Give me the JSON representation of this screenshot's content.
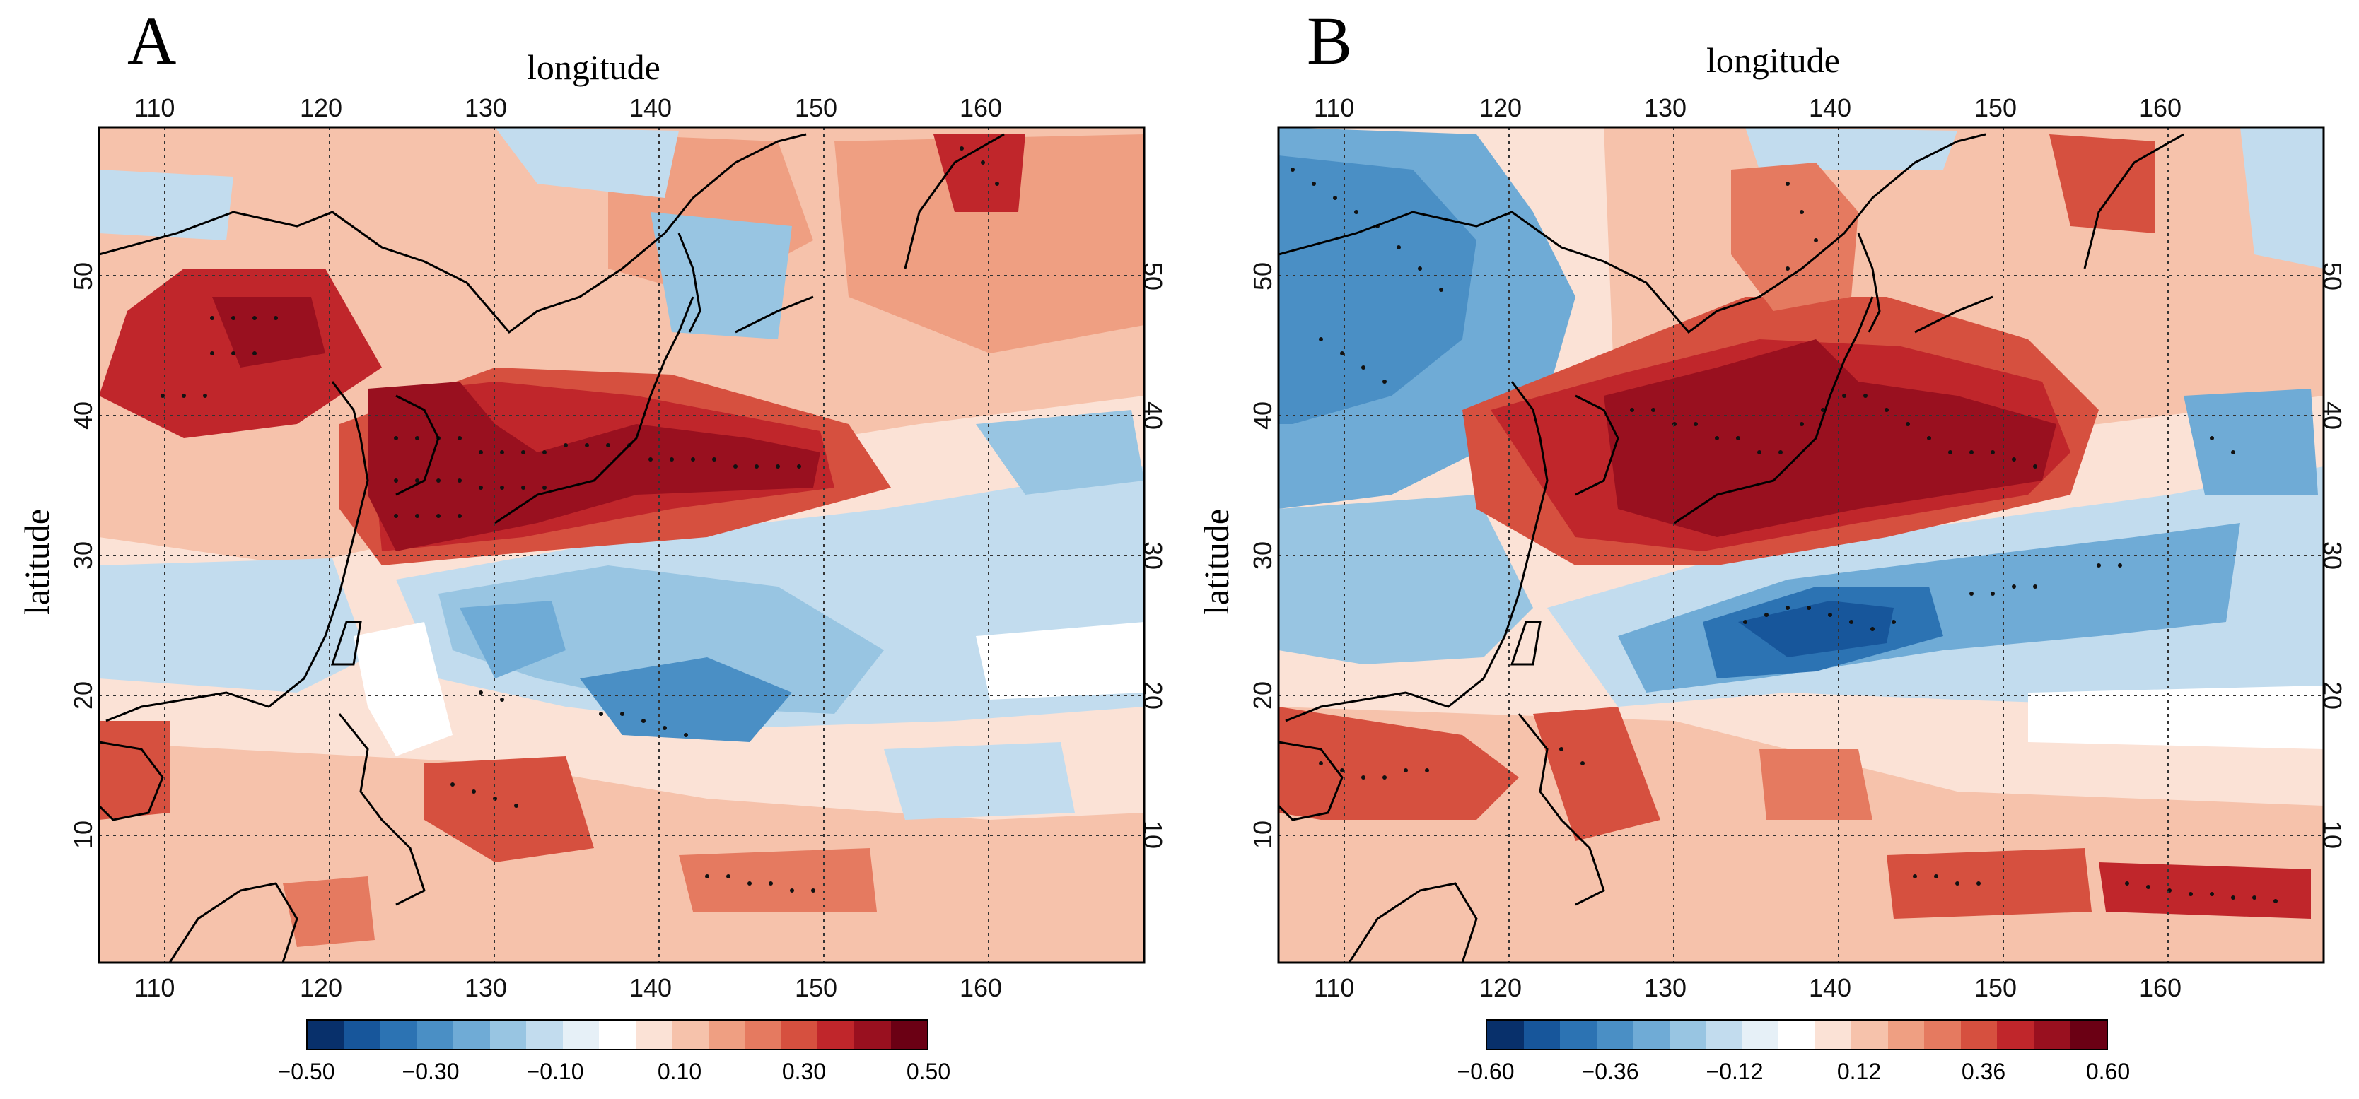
{
  "panels": [
    {
      "id": "A",
      "letter": "A",
      "xlabel": "longitude",
      "ylabel": "latitude",
      "lon_ticks": [
        "110",
        "120",
        "130",
        "140",
        "150",
        "160"
      ],
      "lat_ticks": [
        "10",
        "20",
        "30",
        "40",
        "50"
      ],
      "colorbar": {
        "labels": [
          "−0.50",
          "−0.30",
          "−0.10",
          "0.10",
          "0.30",
          "0.50"
        ],
        "range": [
          -0.5,
          0.5
        ]
      }
    },
    {
      "id": "B",
      "letter": "B",
      "xlabel": "longitude",
      "ylabel": "latitude",
      "lon_ticks": [
        "110",
        "120",
        "130",
        "140",
        "150",
        "160"
      ],
      "lat_ticks": [
        "10",
        "20",
        "30",
        "40",
        "50"
      ],
      "colorbar": {
        "labels": [
          "−0.60",
          "−0.36",
          "−0.12",
          "0.12",
          "0.36",
          "0.60"
        ],
        "range": [
          -0.6,
          0.6
        ]
      }
    }
  ],
  "palette": [
    "#08306b",
    "#17569b",
    "#2c73b3",
    "#4a8fc5",
    "#6fabd6",
    "#98c5e2",
    "#c2dcee",
    "#e6f0f7",
    "#ffffff",
    "#fbe2d6",
    "#f6c2ab",
    "#ef9f82",
    "#e57a60",
    "#d6503f",
    "#c0262b",
    "#99101f",
    "#6b0014"
  ]
}
